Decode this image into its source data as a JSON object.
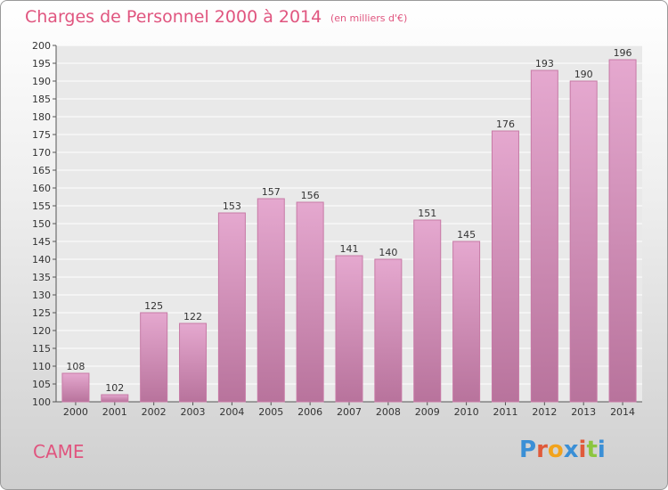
{
  "header": {
    "title": "Charges de Personnel 2000 à 2014",
    "subtitle": "(en milliers d'€)"
  },
  "footer": {
    "commune": "CAME",
    "logo_text": "Proxiti",
    "logo_colors": [
      "#3a8fd6",
      "#e05a3a",
      "#f2a31c",
      "#3a8fd6",
      "#e05a3a",
      "#8cc63f",
      "#3a8fd6"
    ]
  },
  "colors": {
    "accent": "#e0557f",
    "bar_top": "#e5a8cf",
    "bar_bottom": "#b8739c",
    "bar_edge": "#c77aa6"
  },
  "chart_data": {
    "type": "bar",
    "title": "Charges de Personnel 2000 à 2014",
    "subtitle": "(en milliers d'€)",
    "categories": [
      "2000",
      "2001",
      "2002",
      "2003",
      "2004",
      "2005",
      "2006",
      "2007",
      "2008",
      "2009",
      "2010",
      "2011",
      "2012",
      "2013",
      "2014"
    ],
    "values": [
      108,
      102,
      125,
      122,
      153,
      157,
      156,
      141,
      140,
      151,
      145,
      176,
      193,
      190,
      196
    ],
    "value_labels": [
      "108",
      "102",
      "125",
      "122",
      "153",
      "157",
      "156",
      "141",
      "140",
      "151",
      "145",
      "176",
      "193",
      "190",
      "196"
    ],
    "ylim": [
      100,
      200
    ],
    "yticks": [
      "100",
      "105",
      "110",
      "115",
      "120",
      "125",
      "130",
      "135",
      "140",
      "145",
      "150",
      "155",
      "160",
      "165",
      "170",
      "175",
      "180",
      "185",
      "190",
      "195",
      "200"
    ],
    "grid": true,
    "legend": "none"
  }
}
